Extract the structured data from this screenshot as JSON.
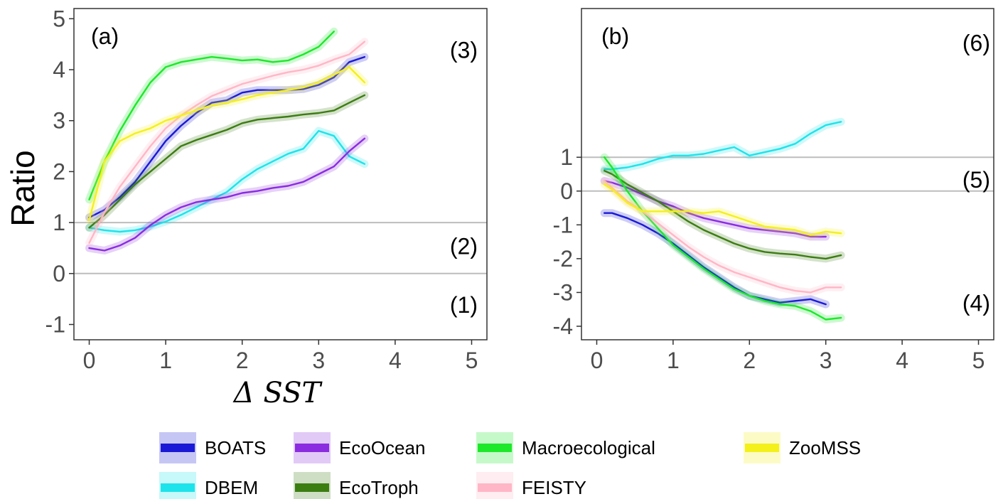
{
  "chart_data": [
    {
      "type": "line",
      "panel_label": "(a)",
      "xlabel": "Δ SST",
      "ylabel": "Ratio",
      "xlim": [
        -0.2,
        5.2
      ],
      "ylim": [
        -1.3,
        5.2
      ],
      "xticks": [
        "0",
        "1",
        "2",
        "3",
        "4",
        "5"
      ],
      "yticks": [
        "-1",
        "0",
        "1",
        "2",
        "3",
        "4",
        "5"
      ],
      "reference_lines": [
        0,
        1
      ],
      "region_labels": [
        {
          "text": "(3)",
          "y": 4.4
        },
        {
          "text": "(2)",
          "y": 0.55
        },
        {
          "text": "(1)",
          "y": -0.6
        }
      ],
      "grid": false,
      "series": [
        {
          "name": "BOATS",
          "x": [
            0,
            0.2,
            0.4,
            0.6,
            0.8,
            1.0,
            1.2,
            1.4,
            1.6,
            1.8,
            2.0,
            2.2,
            2.4,
            2.6,
            2.8,
            3.0,
            3.2,
            3.4,
            3.6
          ],
          "values": [
            1.1,
            1.25,
            1.5,
            1.8,
            2.2,
            2.6,
            2.9,
            3.15,
            3.35,
            3.4,
            3.55,
            3.6,
            3.6,
            3.6,
            3.62,
            3.7,
            3.85,
            4.15,
            4.25
          ]
        },
        {
          "name": "DBEM",
          "x": [
            0,
            0.2,
            0.4,
            0.6,
            0.8,
            1.0,
            1.2,
            1.4,
            1.6,
            1.8,
            2.0,
            2.2,
            2.4,
            2.6,
            2.8,
            3.0,
            3.2,
            3.4,
            3.6
          ],
          "values": [
            0.9,
            0.85,
            0.82,
            0.85,
            0.92,
            1.02,
            1.15,
            1.3,
            1.45,
            1.6,
            1.85,
            2.05,
            2.2,
            2.35,
            2.45,
            2.8,
            2.7,
            2.3,
            2.15
          ]
        },
        {
          "name": "EcoOcean",
          "x": [
            0,
            0.2,
            0.4,
            0.6,
            0.8,
            1.0,
            1.2,
            1.4,
            1.6,
            1.8,
            2.0,
            2.2,
            2.4,
            2.6,
            2.8,
            3.0,
            3.2,
            3.4,
            3.6
          ],
          "values": [
            0.5,
            0.45,
            0.55,
            0.7,
            0.95,
            1.15,
            1.3,
            1.4,
            1.45,
            1.5,
            1.58,
            1.62,
            1.68,
            1.72,
            1.8,
            1.95,
            2.1,
            2.4,
            2.65
          ]
        },
        {
          "name": "EcoTroph",
          "x": [
            0,
            0.2,
            0.4,
            0.6,
            0.8,
            1.0,
            1.2,
            1.4,
            1.6,
            1.8,
            2.0,
            2.2,
            2.4,
            2.6,
            2.8,
            3.0,
            3.2,
            3.4,
            3.6
          ],
          "values": [
            0.9,
            1.15,
            1.45,
            1.75,
            2.0,
            2.25,
            2.5,
            2.62,
            2.72,
            2.82,
            2.95,
            3.02,
            3.05,
            3.08,
            3.12,
            3.15,
            3.2,
            3.35,
            3.5
          ]
        },
        {
          "name": "Macroecological",
          "x": [
            0,
            0.2,
            0.4,
            0.6,
            0.8,
            1.0,
            1.2,
            1.4,
            1.6,
            1.8,
            2.0,
            2.2,
            2.4,
            2.6,
            2.8,
            3.0,
            3.2
          ],
          "values": [
            1.45,
            2.2,
            2.8,
            3.3,
            3.75,
            4.05,
            4.15,
            4.2,
            4.25,
            4.22,
            4.18,
            4.2,
            4.15,
            4.18,
            4.3,
            4.45,
            4.75
          ]
        },
        {
          "name": "FEISTY",
          "x": [
            0,
            0.2,
            0.4,
            0.6,
            0.8,
            1.0,
            1.2,
            1.4,
            1.6,
            1.8,
            2.0,
            2.2,
            2.4,
            2.6,
            2.8,
            3.0,
            3.2,
            3.4,
            3.6
          ],
          "values": [
            0.6,
            1.2,
            1.7,
            2.1,
            2.5,
            2.85,
            3.1,
            3.3,
            3.48,
            3.6,
            3.72,
            3.8,
            3.88,
            3.95,
            4.0,
            4.08,
            4.2,
            4.3,
            4.55
          ]
        },
        {
          "name": "ZooMSS",
          "x": [
            0,
            0.2,
            0.4,
            0.6,
            0.8,
            1.0,
            1.2,
            1.4,
            1.6,
            1.8,
            2.0,
            2.2,
            2.4,
            2.6,
            2.8,
            3.0,
            3.2,
            3.4,
            3.6
          ],
          "values": [
            1.05,
            2.2,
            2.6,
            2.75,
            2.85,
            3.0,
            3.1,
            3.2,
            3.3,
            3.35,
            3.42,
            3.5,
            3.55,
            3.6,
            3.65,
            3.75,
            3.9,
            4.05,
            3.75
          ]
        }
      ]
    },
    {
      "type": "line",
      "panel_label": "(b)",
      "xlabel": "",
      "ylabel": "",
      "xlim": [
        -0.2,
        5.2
      ],
      "ylim": [
        -4.4,
        5.4
      ],
      "xticks": [
        "0",
        "1",
        "2",
        "3",
        "4",
        "5"
      ],
      "yticks": [
        "-4",
        "-3",
        "-2",
        "-1",
        "0",
        "1"
      ],
      "reference_lines": [
        0,
        1
      ],
      "region_labels": [
        {
          "text": "(6)",
          "y": 4.4
        },
        {
          "text": "(5)",
          "y": 0.35
        },
        {
          "text": "(4)",
          "y": -3.3
        }
      ],
      "grid": false,
      "series": [
        {
          "name": "BOATS",
          "x": [
            0.1,
            0.2,
            0.4,
            0.6,
            0.8,
            1.0,
            1.2,
            1.4,
            1.6,
            1.8,
            2.0,
            2.2,
            2.4,
            2.6,
            2.8,
            3.0
          ],
          "values": [
            -0.65,
            -0.65,
            -0.8,
            -1.0,
            -1.25,
            -1.55,
            -1.9,
            -2.25,
            -2.55,
            -2.85,
            -3.1,
            -3.2,
            -3.3,
            -3.25,
            -3.2,
            -3.35
          ]
        },
        {
          "name": "DBEM",
          "x": [
            0.1,
            0.2,
            0.4,
            0.6,
            0.8,
            1.0,
            1.2,
            1.4,
            1.6,
            1.8,
            2.0,
            2.2,
            2.4,
            2.6,
            2.8,
            3.0,
            3.2
          ],
          "values": [
            0.65,
            0.65,
            0.7,
            0.8,
            0.95,
            1.05,
            1.05,
            1.1,
            1.2,
            1.3,
            1.05,
            1.15,
            1.25,
            1.4,
            1.7,
            1.95,
            2.05
          ]
        },
        {
          "name": "EcoOcean",
          "x": [
            0.1,
            0.2,
            0.4,
            0.6,
            0.8,
            1.0,
            1.2,
            1.4,
            1.6,
            1.8,
            2.0,
            2.2,
            2.4,
            2.6,
            2.8,
            3.0
          ],
          "values": [
            0.3,
            0.25,
            0.1,
            -0.1,
            -0.3,
            -0.45,
            -0.65,
            -0.8,
            -0.9,
            -1.0,
            -1.1,
            -1.15,
            -1.2,
            -1.25,
            -1.35,
            -1.35
          ]
        },
        {
          "name": "EcoTroph",
          "x": [
            0.1,
            0.2,
            0.4,
            0.6,
            0.8,
            1.0,
            1.2,
            1.4,
            1.6,
            1.8,
            2.0,
            2.2,
            2.4,
            2.6,
            2.8,
            3.0,
            3.2
          ],
          "values": [
            0.6,
            0.5,
            0.2,
            -0.05,
            -0.3,
            -0.6,
            -0.9,
            -1.15,
            -1.35,
            -1.55,
            -1.7,
            -1.8,
            -1.85,
            -1.88,
            -1.95,
            -2.0,
            -1.9
          ]
        },
        {
          "name": "Macroecological",
          "x": [
            0.1,
            0.2,
            0.4,
            0.6,
            0.8,
            1.0,
            1.2,
            1.4,
            1.6,
            1.8,
            2.0,
            2.2,
            2.4,
            2.6,
            2.8,
            3.0,
            3.2
          ],
          "values": [
            1.0,
            0.7,
            0.0,
            -0.6,
            -1.1,
            -1.6,
            -1.95,
            -2.3,
            -2.6,
            -2.9,
            -3.1,
            -3.25,
            -3.35,
            -3.4,
            -3.55,
            -3.8,
            -3.75
          ]
        },
        {
          "name": "FEISTY",
          "x": [
            0.1,
            0.2,
            0.4,
            0.6,
            0.8,
            1.0,
            1.2,
            1.4,
            1.6,
            1.8,
            2.0,
            2.2,
            2.4,
            2.6,
            2.8,
            3.0,
            3.2
          ],
          "values": [
            0.3,
            0.1,
            -0.3,
            -0.6,
            -0.95,
            -1.3,
            -1.65,
            -1.95,
            -2.2,
            -2.4,
            -2.55,
            -2.7,
            -2.85,
            -2.95,
            -3.0,
            -2.85,
            -2.85
          ]
        },
        {
          "name": "ZooMSS",
          "x": [
            0.1,
            0.2,
            0.4,
            0.6,
            0.8,
            1.0,
            1.2,
            1.4,
            1.6,
            1.8,
            2.0,
            2.2,
            2.4,
            2.6,
            2.8,
            3.0,
            3.2
          ],
          "values": [
            0.2,
            0.05,
            -0.35,
            -0.6,
            -0.6,
            -0.6,
            -0.6,
            -0.65,
            -0.6,
            -0.75,
            -0.9,
            -1.05,
            -1.1,
            -1.15,
            -1.3,
            -1.2,
            -1.25
          ]
        }
      ]
    }
  ],
  "legend": {
    "items": [
      {
        "name": "BOATS",
        "color": "#1a1ad6"
      },
      {
        "name": "DBEM",
        "color": "#1ee3ea"
      },
      {
        "name": "EcoOcean",
        "color": "#8b2ce0"
      },
      {
        "name": "EcoTroph",
        "color": "#3c7d12"
      },
      {
        "name": "Macroecological",
        "color": "#1de82a"
      },
      {
        "name": "FEISTY",
        "color": "#ffb6c6"
      },
      {
        "name": "ZooMSS",
        "color": "#f4f01c"
      }
    ]
  },
  "colors": {
    "reference_line": "#bdbdbd",
    "axis": "#333333",
    "tick_label": "#4d4d4d",
    "background": "#ffffff"
  }
}
